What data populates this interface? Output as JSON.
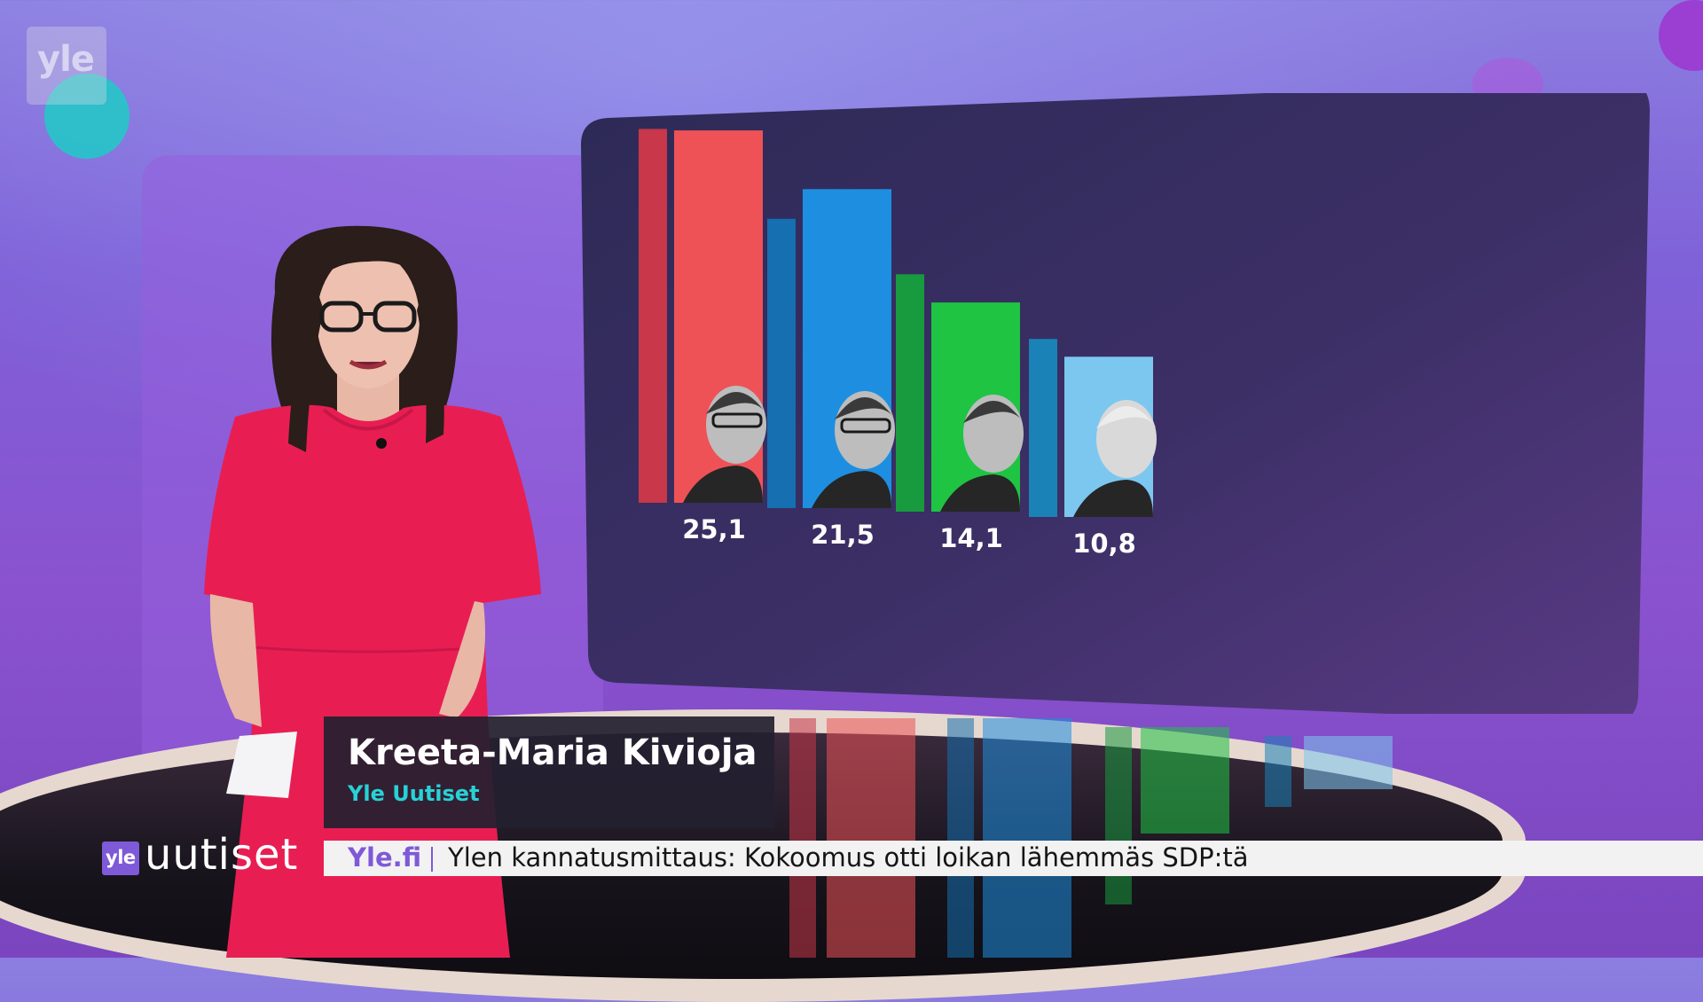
{
  "watermark": {
    "text": "yle"
  },
  "name_strap": {
    "name": "Kreeta-Maria Kivioja",
    "affiliation": "Yle Uutiset"
  },
  "ticker": {
    "logo_small": "yle",
    "brand": "uutiset",
    "source": "Yle.fi",
    "headline": "Ylen kannatusmittaus: Kokoomus otti loikan lähemmäs SDP:tä"
  },
  "chart_data": {
    "type": "bar",
    "values": [
      25.1,
      21.5,
      14.1,
      10.8
    ],
    "value_labels": [
      "25,1",
      "21,5",
      "14,1",
      "10,8"
    ],
    "previous_values_estimated": [
      25.2,
      19.5,
      16.0,
      12.0
    ],
    "colors": [
      "#ee5257",
      "#1e8fe0",
      "#1fc443",
      "#7cc7ef"
    ],
    "previous_colors": [
      "#c8374a",
      "#166fb0",
      "#189a3e",
      "#1a82b7"
    ],
    "ylim": [
      0,
      26
    ],
    "title": "",
    "xlabel": "",
    "ylabel": "",
    "grid": false,
    "legend": "none"
  },
  "colors": {
    "screen_bg": "#35305e",
    "accent": "#7e59d8",
    "teal": "#26d2d6",
    "dress": "#e81e52"
  }
}
